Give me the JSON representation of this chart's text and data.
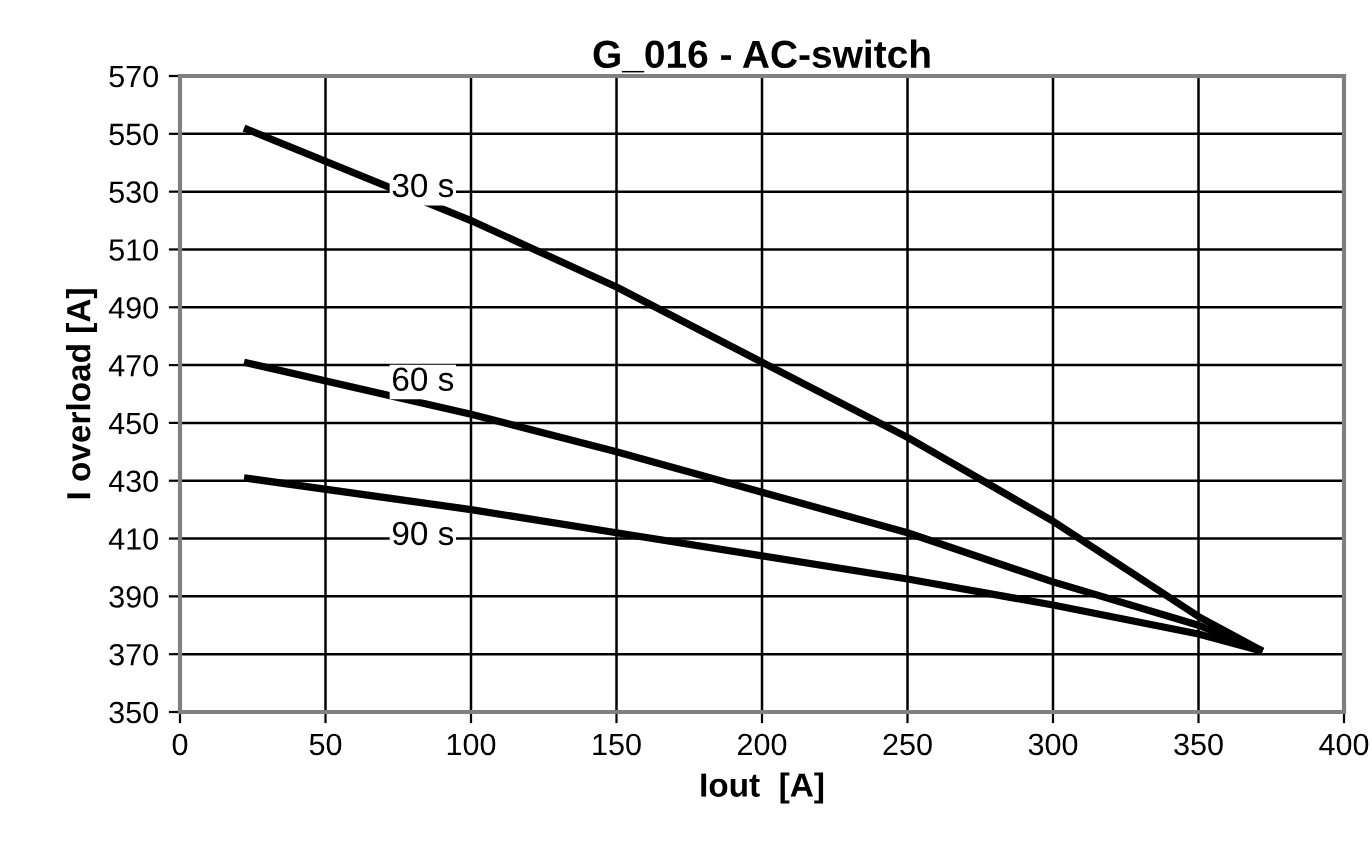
{
  "chart_data": {
    "type": "line",
    "title": "G_016 - AC-switch",
    "xlabel": "Iout  [A]",
    "ylabel": "I overload [A]",
    "series": [
      {
        "name": "30 s",
        "color": "#000000",
        "x": [
          22,
          100,
          150,
          200,
          250,
          300,
          350,
          372
        ],
        "values": [
          552,
          520,
          497,
          471,
          445,
          416,
          383,
          371
        ]
      },
      {
        "name": "60 s",
        "color": "#000000",
        "x": [
          22,
          100,
          150,
          200,
          250,
          300,
          350,
          372
        ],
        "values": [
          471,
          453,
          440,
          426,
          412,
          395,
          380,
          371
        ]
      },
      {
        "name": "90 s",
        "color": "#000000",
        "x": [
          22,
          100,
          150,
          200,
          250,
          300,
          350,
          372
        ],
        "values": [
          431,
          420,
          412,
          404,
          396,
          387,
          377,
          371
        ]
      }
    ],
    "xlim": [
      0,
      400
    ],
    "xticks": [
      0,
      50,
      100,
      150,
      200,
      250,
      300,
      350,
      400
    ],
    "ylim": [
      350,
      570
    ],
    "yticks": [
      350,
      370,
      390,
      410,
      430,
      450,
      470,
      490,
      510,
      530,
      550,
      570
    ],
    "grid": true,
    "marker": "none",
    "line_style": "solid"
  }
}
